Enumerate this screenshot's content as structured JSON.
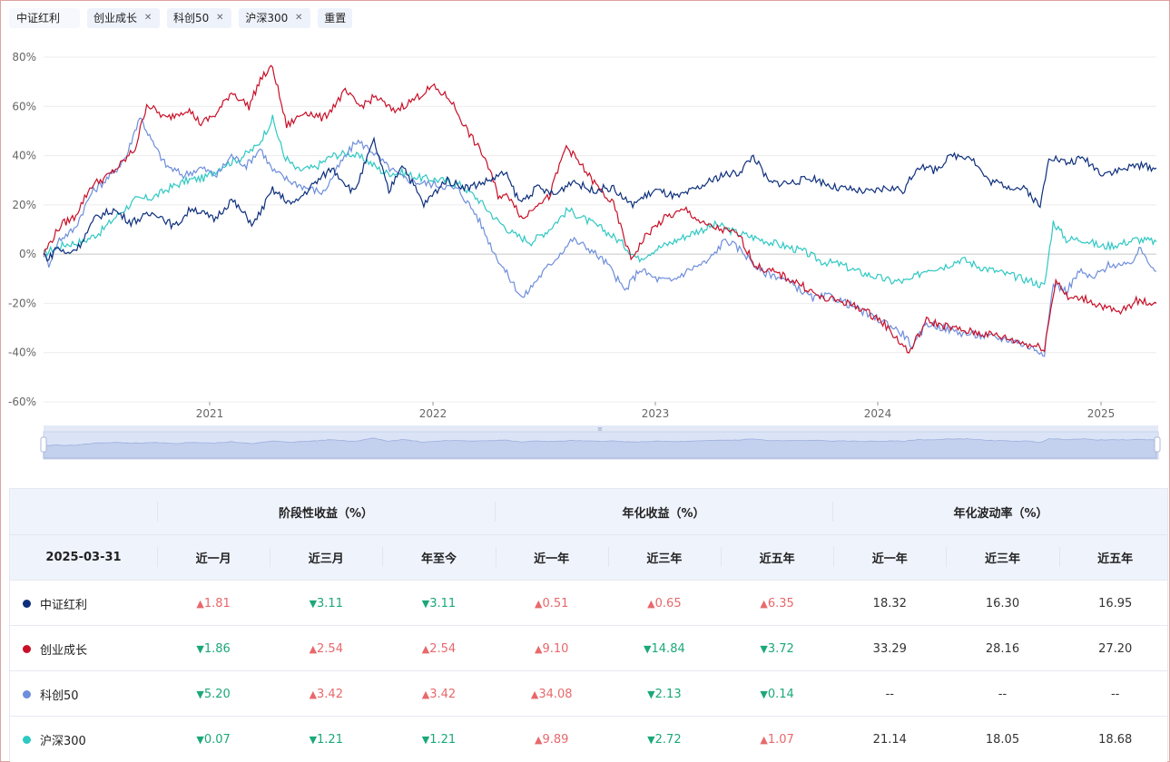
{
  "filters": [
    {
      "label": "中证红利",
      "removable": false
    },
    {
      "label": "创业成长",
      "removable": true
    },
    {
      "label": "科创50",
      "removable": true
    },
    {
      "label": "沪深300",
      "removable": true
    },
    {
      "label": "重置",
      "removable": false
    }
  ],
  "chart_data": {
    "type": "line",
    "y_ticks": [
      "80%",
      "60%",
      "40%",
      "20%",
      "0%",
      "-20%",
      "-40%",
      "-60%"
    ],
    "ylim": [
      -60,
      80
    ],
    "x_ticks": [
      "2021",
      "2022",
      "2023",
      "2024",
      "2025"
    ],
    "x_domain": [
      "2020-04-01",
      "2025-03-31"
    ],
    "grid": true,
    "series": [
      {
        "name": "中证红利",
        "color": "#0d2f7c",
        "values": [
          [
            0,
            0
          ],
          [
            6,
            -2
          ],
          [
            15,
            3
          ],
          [
            26,
            0
          ],
          [
            40,
            3
          ],
          [
            60,
            15
          ],
          [
            80,
            18
          ],
          [
            100,
            13
          ],
          [
            128,
            17
          ],
          [
            150,
            11
          ],
          [
            170,
            19
          ],
          [
            195,
            14
          ],
          [
            215,
            22
          ],
          [
            240,
            12
          ],
          [
            262,
            26
          ],
          [
            285,
            20
          ],
          [
            305,
            27
          ],
          [
            330,
            35
          ],
          [
            355,
            25
          ],
          [
            378,
            46
          ],
          [
            395,
            25
          ],
          [
            410,
            37
          ],
          [
            435,
            20
          ],
          [
            460,
            30
          ],
          [
            485,
            27
          ],
          [
            510,
            30
          ],
          [
            528,
            33
          ],
          [
            545,
            21
          ],
          [
            565,
            27
          ],
          [
            585,
            24
          ],
          [
            605,
            30
          ],
          [
            625,
            26
          ],
          [
            650,
            27
          ],
          [
            672,
            20
          ],
          [
            700,
            26
          ],
          [
            725,
            23
          ],
          [
            750,
            27
          ],
          [
            775,
            32
          ],
          [
            795,
            33
          ],
          [
            812,
            40
          ],
          [
            830,
            29
          ],
          [
            855,
            29
          ],
          [
            880,
            31
          ],
          [
            905,
            27
          ],
          [
            925,
            26
          ],
          [
            945,
            25
          ],
          [
            965,
            27
          ],
          [
            985,
            26
          ],
          [
            1000,
            36
          ],
          [
            1018,
            34
          ],
          [
            1040,
            40
          ],
          [
            1060,
            40
          ],
          [
            1080,
            30
          ],
          [
            1100,
            28
          ],
          [
            1125,
            26
          ],
          [
            1140,
            19
          ],
          [
            1150,
            40
          ],
          [
            1170,
            37
          ],
          [
            1190,
            39
          ],
          [
            1210,
            33
          ],
          [
            1230,
            34
          ],
          [
            1250,
            36
          ],
          [
            1273,
            35
          ]
        ]
      },
      {
        "name": "创业成长",
        "color": "#c80f27",
        "values": [
          [
            0,
            0
          ],
          [
            8,
            5
          ],
          [
            20,
            12
          ],
          [
            35,
            15
          ],
          [
            55,
            28
          ],
          [
            75,
            32
          ],
          [
            90,
            37
          ],
          [
            105,
            43
          ],
          [
            118,
            61
          ],
          [
            140,
            55
          ],
          [
            165,
            59
          ],
          [
            180,
            53
          ],
          [
            198,
            57
          ],
          [
            215,
            66
          ],
          [
            235,
            60
          ],
          [
            248,
            71
          ],
          [
            262,
            76
          ],
          [
            278,
            52
          ],
          [
            300,
            58
          ],
          [
            320,
            55
          ],
          [
            345,
            66
          ],
          [
            362,
            60
          ],
          [
            380,
            64
          ],
          [
            400,
            58
          ],
          [
            420,
            62
          ],
          [
            445,
            68
          ],
          [
            465,
            63
          ],
          [
            485,
            50
          ],
          [
            505,
            39
          ],
          [
            520,
            24
          ],
          [
            535,
            23
          ],
          [
            548,
            14
          ],
          [
            565,
            21
          ],
          [
            578,
            23
          ],
          [
            598,
            44
          ],
          [
            615,
            36
          ],
          [
            632,
            28
          ],
          [
            652,
            20
          ],
          [
            672,
            -2
          ],
          [
            690,
            8
          ],
          [
            712,
            15
          ],
          [
            735,
            18
          ],
          [
            755,
            12
          ],
          [
            775,
            10
          ],
          [
            795,
            8
          ],
          [
            815,
            -5
          ],
          [
            840,
            -8
          ],
          [
            865,
            -12
          ],
          [
            890,
            -18
          ],
          [
            912,
            -19
          ],
          [
            935,
            -22
          ],
          [
            958,
            -27
          ],
          [
            978,
            -35
          ],
          [
            990,
            -40
          ],
          [
            1010,
            -27
          ],
          [
            1030,
            -29
          ],
          [
            1050,
            -31
          ],
          [
            1070,
            -32
          ],
          [
            1090,
            -33
          ],
          [
            1110,
            -35
          ],
          [
            1130,
            -37
          ],
          [
            1145,
            -38
          ],
          [
            1158,
            -10
          ],
          [
            1172,
            -18
          ],
          [
            1190,
            -18
          ],
          [
            1210,
            -21
          ],
          [
            1230,
            -24
          ],
          [
            1250,
            -19
          ],
          [
            1273,
            -20
          ]
        ]
      },
      {
        "name": "科创50",
        "color": "#6e8edb",
        "values": [
          [
            0,
            0
          ],
          [
            6,
            -4
          ],
          [
            18,
            6
          ],
          [
            35,
            10
          ],
          [
            55,
            25
          ],
          [
            80,
            33
          ],
          [
            95,
            40
          ],
          [
            110,
            56
          ],
          [
            125,
            45
          ],
          [
            140,
            36
          ],
          [
            160,
            32
          ],
          [
            180,
            35
          ],
          [
            198,
            32
          ],
          [
            215,
            40
          ],
          [
            232,
            36
          ],
          [
            248,
            43
          ],
          [
            262,
            34
          ],
          [
            280,
            30
          ],
          [
            300,
            27
          ],
          [
            320,
            25
          ],
          [
            340,
            37
          ],
          [
            358,
            46
          ],
          [
            376,
            42
          ],
          [
            392,
            36
          ],
          [
            410,
            31
          ],
          [
            430,
            29
          ],
          [
            455,
            28
          ],
          [
            475,
            26
          ],
          [
            495,
            16
          ],
          [
            515,
            1
          ],
          [
            530,
            -8
          ],
          [
            548,
            -18
          ],
          [
            565,
            -10
          ],
          [
            585,
            -2
          ],
          [
            605,
            6
          ],
          [
            625,
            2
          ],
          [
            645,
            -4
          ],
          [
            665,
            -15
          ],
          [
            682,
            -6
          ],
          [
            700,
            -10
          ],
          [
            718,
            -11
          ],
          [
            740,
            -6
          ],
          [
            760,
            -3
          ],
          [
            780,
            6
          ],
          [
            800,
            1
          ],
          [
            820,
            -7
          ],
          [
            840,
            -9
          ],
          [
            860,
            -13
          ],
          [
            880,
            -18
          ],
          [
            900,
            -17
          ],
          [
            925,
            -21
          ],
          [
            945,
            -25
          ],
          [
            965,
            -28
          ],
          [
            985,
            -33
          ],
          [
            995,
            -38
          ],
          [
            1010,
            -28
          ],
          [
            1030,
            -30
          ],
          [
            1050,
            -32
          ],
          [
            1070,
            -33
          ],
          [
            1090,
            -34
          ],
          [
            1110,
            -35
          ],
          [
            1130,
            -38
          ],
          [
            1145,
            -40
          ],
          [
            1155,
            -12
          ],
          [
            1170,
            -15
          ],
          [
            1185,
            -7
          ],
          [
            1200,
            -10
          ],
          [
            1220,
            -4
          ],
          [
            1240,
            -5
          ],
          [
            1255,
            2
          ],
          [
            1273,
            -7
          ]
        ]
      },
      {
        "name": "沪深300",
        "color": "#2ec8c3",
        "values": [
          [
            0,
            0
          ],
          [
            10,
            2
          ],
          [
            25,
            4
          ],
          [
            45,
            5
          ],
          [
            65,
            9
          ],
          [
            85,
            16
          ],
          [
            105,
            22
          ],
          [
            125,
            23
          ],
          [
            145,
            27
          ],
          [
            165,
            30
          ],
          [
            185,
            31
          ],
          [
            205,
            36
          ],
          [
            225,
            39
          ],
          [
            245,
            44
          ],
          [
            262,
            55
          ],
          [
            275,
            40
          ],
          [
            290,
            34
          ],
          [
            310,
            35
          ],
          [
            330,
            40
          ],
          [
            350,
            41
          ],
          [
            370,
            38
          ],
          [
            390,
            33
          ],
          [
            410,
            33
          ],
          [
            430,
            31
          ],
          [
            455,
            30
          ],
          [
            478,
            28
          ],
          [
            498,
            22
          ],
          [
            518,
            14
          ],
          [
            538,
            8
          ],
          [
            558,
            5
          ],
          [
            578,
            10
          ],
          [
            600,
            18
          ],
          [
            620,
            14
          ],
          [
            640,
            10
          ],
          [
            660,
            5
          ],
          [
            680,
            -2
          ],
          [
            700,
            2
          ],
          [
            720,
            5
          ],
          [
            745,
            9
          ],
          [
            770,
            12
          ],
          [
            790,
            9
          ],
          [
            810,
            7
          ],
          [
            830,
            5
          ],
          [
            850,
            3
          ],
          [
            870,
            1
          ],
          [
            890,
            -3
          ],
          [
            910,
            -4
          ],
          [
            930,
            -7
          ],
          [
            950,
            -9
          ],
          [
            970,
            -11
          ],
          [
            990,
            -11
          ],
          [
            1010,
            -6
          ],
          [
            1030,
            -5
          ],
          [
            1050,
            -2
          ],
          [
            1070,
            -5
          ],
          [
            1090,
            -7
          ],
          [
            1110,
            -9
          ],
          [
            1130,
            -11
          ],
          [
            1145,
            -13
          ],
          [
            1155,
            13
          ],
          [
            1170,
            6
          ],
          [
            1190,
            6
          ],
          [
            1210,
            3
          ],
          [
            1230,
            4
          ],
          [
            1250,
            6
          ],
          [
            1273,
            5
          ]
        ]
      }
    ]
  },
  "table": {
    "date": "2025-03-31",
    "groups": [
      "阶段性收益（%）",
      "年化收益（%）",
      "年化波动率（%）"
    ],
    "subheaders": [
      "近一月",
      "近三月",
      "年至今",
      "近一年",
      "近三年",
      "近五年",
      "近一年",
      "近三年",
      "近五年"
    ],
    "rows": [
      {
        "name": "中证红利",
        "color": "#0d2f7c",
        "cells": [
          [
            "up",
            "1.81"
          ],
          [
            "down",
            "3.11"
          ],
          [
            "down",
            "3.11"
          ],
          [
            "up",
            "0.51"
          ],
          [
            "up",
            "0.65"
          ],
          [
            "up",
            "6.35"
          ],
          [
            "plain",
            "18.32"
          ],
          [
            "plain",
            "16.30"
          ],
          [
            "plain",
            "16.95"
          ]
        ]
      },
      {
        "name": "创业成长",
        "color": "#c80f27",
        "cells": [
          [
            "down",
            "1.86"
          ],
          [
            "up",
            "2.54"
          ],
          [
            "up",
            "2.54"
          ],
          [
            "up",
            "9.10"
          ],
          [
            "down",
            "14.84"
          ],
          [
            "down",
            "3.72"
          ],
          [
            "plain",
            "33.29"
          ],
          [
            "plain",
            "28.16"
          ],
          [
            "plain",
            "27.20"
          ]
        ]
      },
      {
        "name": "科创50",
        "color": "#6e8edb",
        "cells": [
          [
            "down",
            "5.20"
          ],
          [
            "up",
            "3.42"
          ],
          [
            "up",
            "3.42"
          ],
          [
            "up",
            "34.08"
          ],
          [
            "down",
            "2.13"
          ],
          [
            "down",
            "0.14"
          ],
          [
            "plain",
            "--"
          ],
          [
            "plain",
            "--"
          ],
          [
            "plain",
            "--"
          ]
        ]
      },
      {
        "name": "沪深300",
        "color": "#2ec8c3",
        "cells": [
          [
            "down",
            "0.07"
          ],
          [
            "down",
            "1.21"
          ],
          [
            "down",
            "1.21"
          ],
          [
            "up",
            "9.89"
          ],
          [
            "down",
            "2.72"
          ],
          [
            "up",
            "1.07"
          ],
          [
            "plain",
            "21.14"
          ],
          [
            "plain",
            "18.05"
          ],
          [
            "plain",
            "18.68"
          ]
        ]
      }
    ]
  }
}
